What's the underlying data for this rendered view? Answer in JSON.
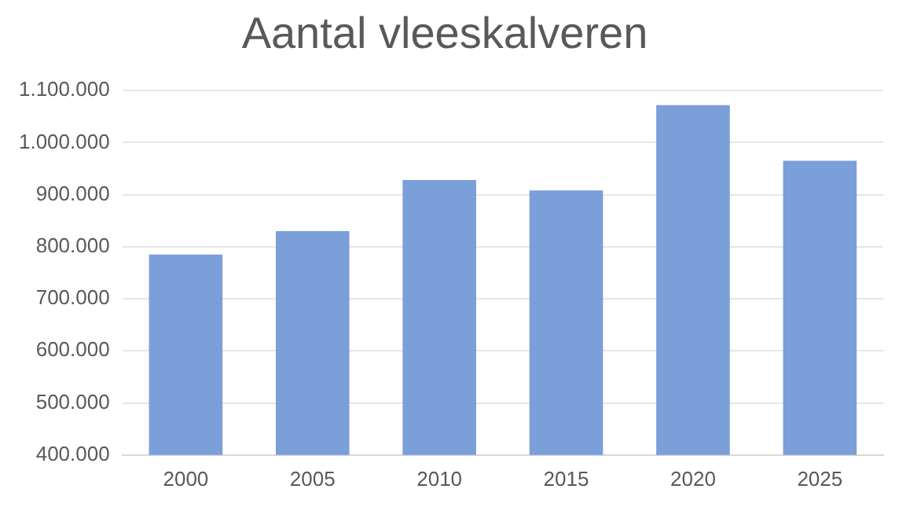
{
  "chart_data": {
    "type": "bar",
    "title": "Aantal vleeskalveren",
    "categories": [
      "2000",
      "2005",
      "2010",
      "2015",
      "2020",
      "2025"
    ],
    "values": [
      785000,
      830000,
      928000,
      908000,
      1072000,
      965000
    ],
    "color": "#7a9fd9",
    "ylim": [
      400000,
      1100000
    ],
    "yticks": [
      {
        "value": 400000,
        "label": "400.000"
      },
      {
        "value": 500000,
        "label": "500.000"
      },
      {
        "value": 600000,
        "label": "600.000"
      },
      {
        "value": 700000,
        "label": "700.000"
      },
      {
        "value": 800000,
        "label": "800.000"
      },
      {
        "value": 900000,
        "label": "900.000"
      },
      {
        "value": 1000000,
        "label": "1.000.000"
      },
      {
        "value": 1100000,
        "label": "1.100.000"
      }
    ],
    "grid": "y"
  }
}
